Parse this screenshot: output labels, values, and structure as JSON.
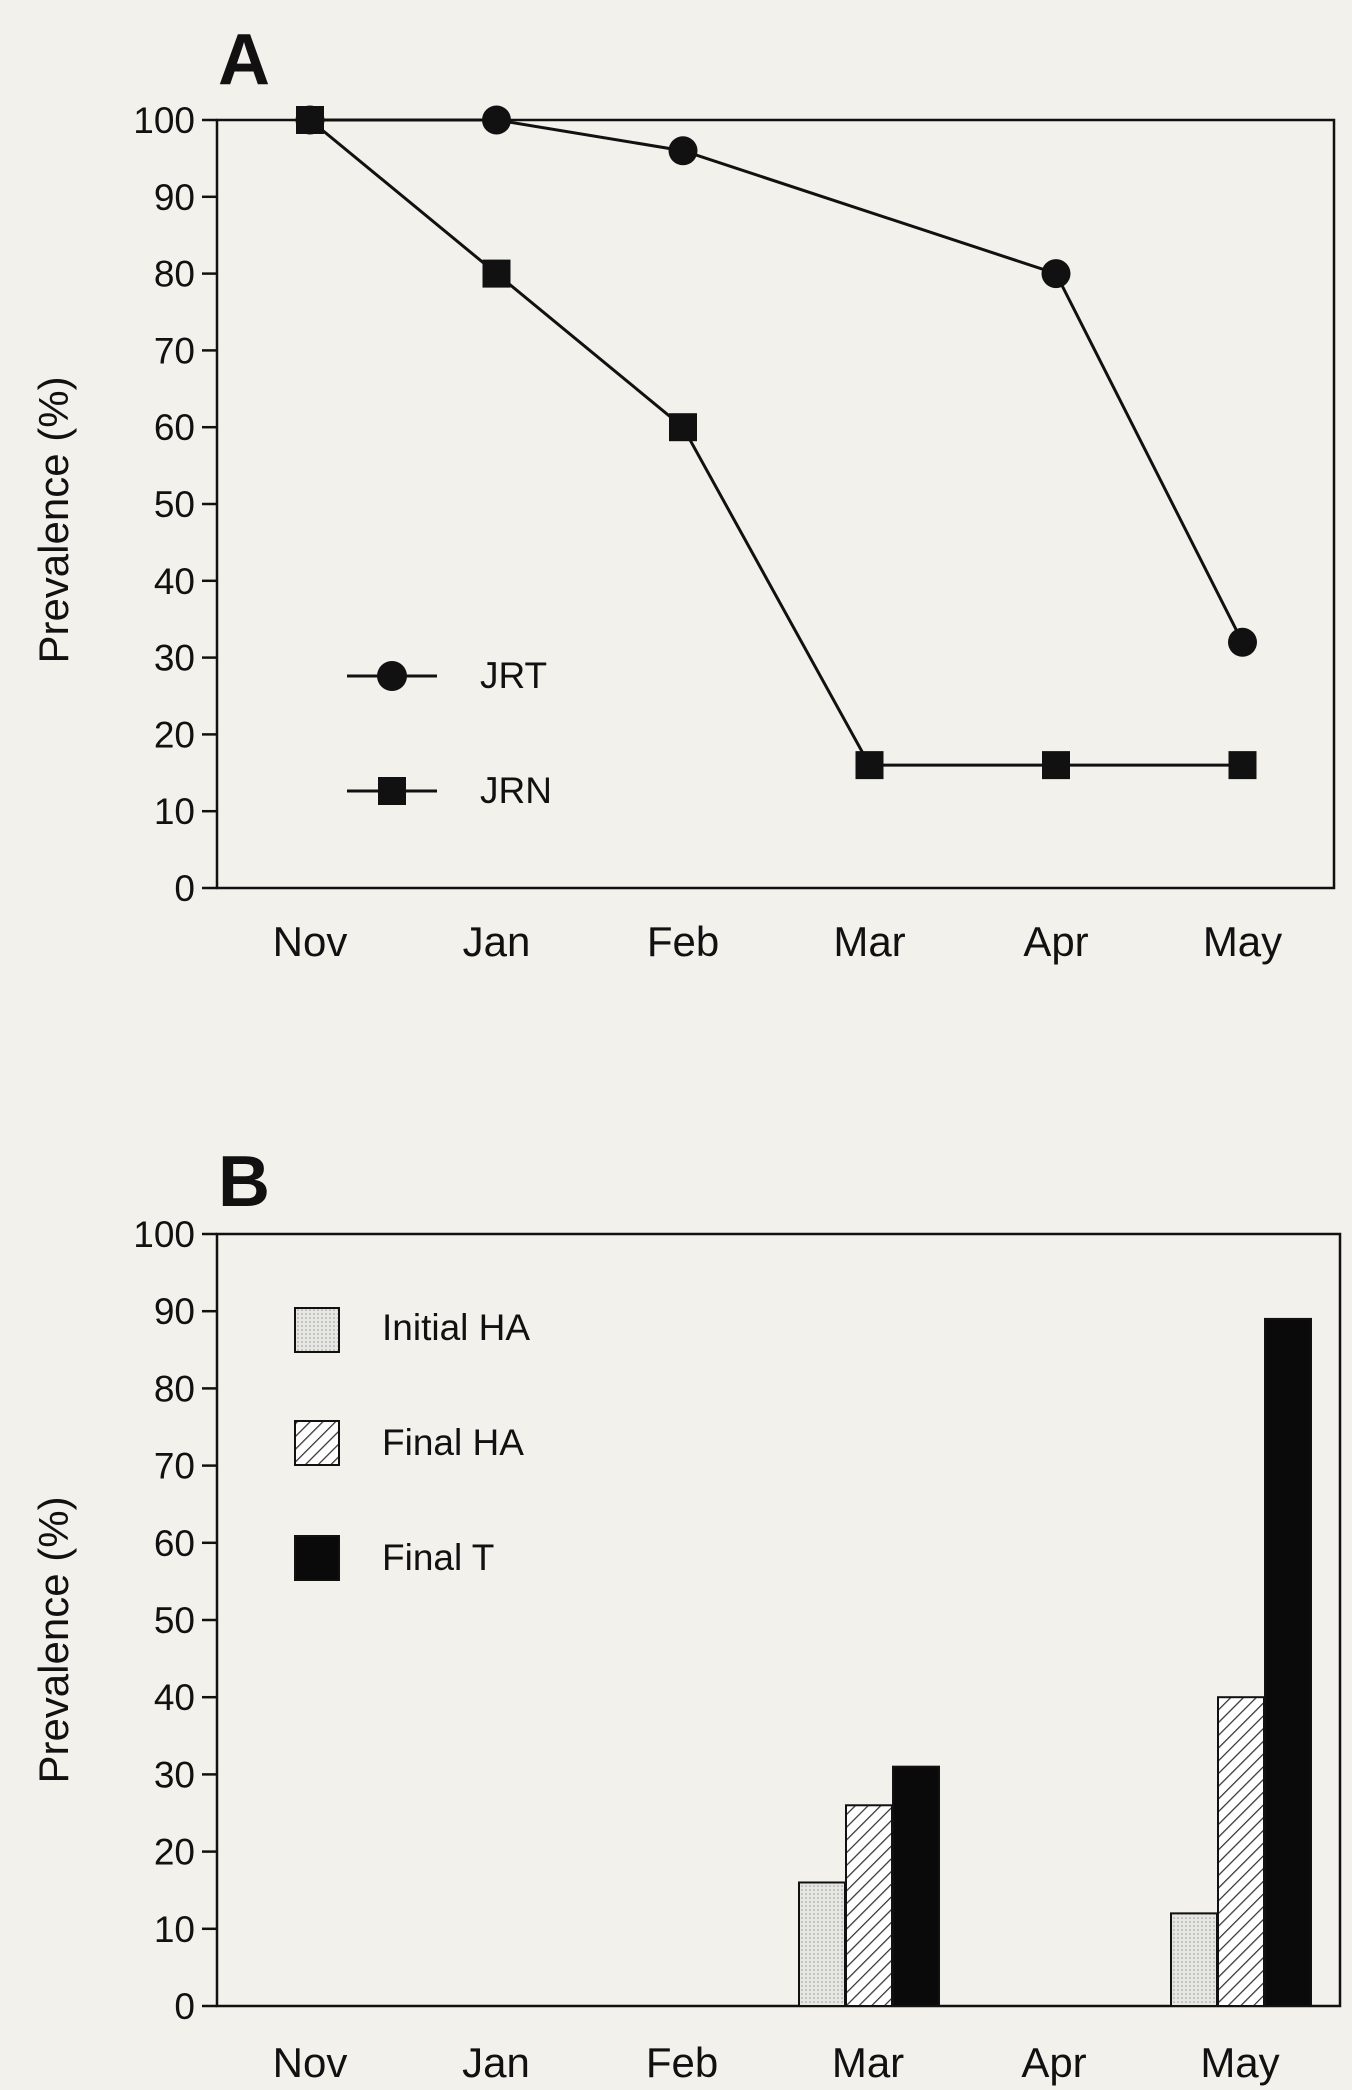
{
  "chart_data": [
    {
      "panel_label": "A",
      "type": "line",
      "ylabel": "Prevalence (%)",
      "ylim": [
        0,
        100
      ],
      "yticks": [
        0,
        10,
        20,
        30,
        40,
        50,
        60,
        70,
        80,
        90,
        100
      ],
      "categories": [
        "Nov",
        "Jan",
        "Feb",
        "Mar",
        "Apr",
        "May"
      ],
      "legend_position": "middle-left",
      "series": [
        {
          "name": "JRT",
          "marker": "circle",
          "values": [
            100,
            100,
            96,
            null,
            80,
            32
          ]
        },
        {
          "name": "JRN",
          "marker": "square",
          "values": [
            100,
            80,
            60,
            16,
            16,
            16
          ]
        }
      ]
    },
    {
      "panel_label": "B",
      "type": "bar",
      "ylabel": "Prevalence (%)",
      "ylim": [
        0,
        100
      ],
      "yticks": [
        0,
        10,
        20,
        30,
        40,
        50,
        60,
        70,
        80,
        90,
        100
      ],
      "categories": [
        "Nov",
        "Jan",
        "Feb",
        "Mar",
        "Apr",
        "May"
      ],
      "legend_position": "top-left",
      "series": [
        {
          "name": "Initial HA",
          "fill": "light-gray",
          "values": [
            null,
            null,
            null,
            16,
            null,
            12
          ]
        },
        {
          "name": "Final HA",
          "fill": "hatched",
          "values": [
            null,
            null,
            null,
            26,
            null,
            40
          ]
        },
        {
          "name": "Final T",
          "fill": "black",
          "values": [
            null,
            null,
            null,
            31,
            null,
            89
          ]
        }
      ]
    }
  ]
}
